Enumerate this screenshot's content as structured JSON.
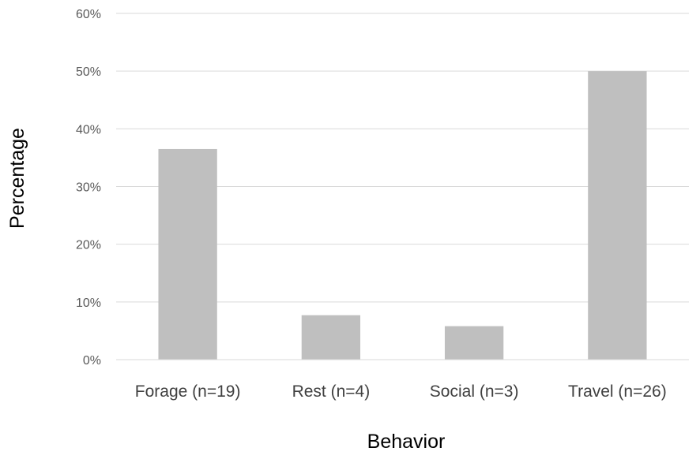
{
  "chart_data": {
    "type": "bar",
    "categories": [
      "Forage (n=19)",
      "Rest (n=4)",
      "Social (n=3)",
      "Travel (n=26)"
    ],
    "values": [
      36.5,
      7.7,
      5.8,
      50.0
    ],
    "value_unit": "%",
    "title": "",
    "xlabel": "Behavior",
    "ylabel": "Percentage",
    "ylim": [
      0,
      60
    ],
    "yticks": [
      "0%",
      "10%",
      "20%",
      "30%",
      "40%",
      "50%",
      "60%"
    ],
    "grid": "horizontal",
    "legend": "none",
    "bar_color": "#bfbfbf",
    "grid_color": "#d9d9d9"
  }
}
